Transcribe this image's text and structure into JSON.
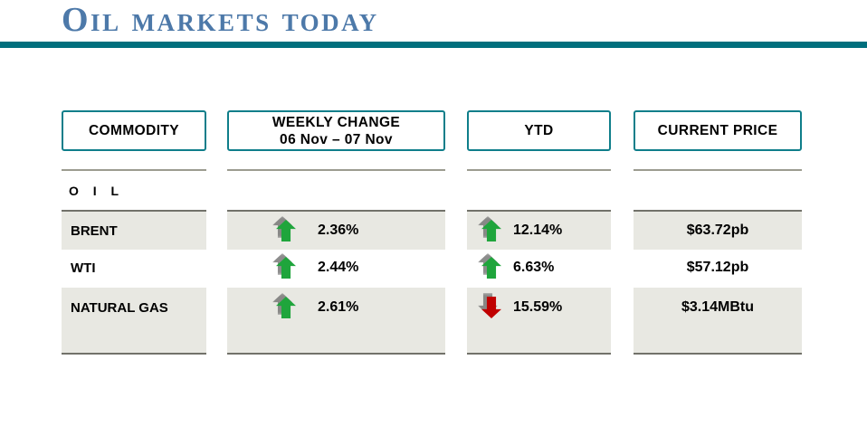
{
  "title": "Oil markets today",
  "colors": {
    "title_blue": "#4d79a9",
    "teal_rule": "#006f7d",
    "box_border": "#0f7e8a",
    "band_gray": "#e8e8e2",
    "band_edge": "#72726a",
    "thin_line": "#9c9c90",
    "arrow_green": "#1fa53c",
    "arrow_red": "#c00000",
    "shadow_gray": "#707070"
  },
  "table": {
    "columns": [
      {
        "id": "commodity",
        "header": "COMMODITY"
      },
      {
        "id": "weekly",
        "header": "WEEKLY CHANGE",
        "subheader": "06 Nov – 07 Nov"
      },
      {
        "id": "ytd",
        "header": "YTD"
      },
      {
        "id": "price",
        "header": "CURRENT PRICE"
      }
    ],
    "section_label": "O I L",
    "rows": [
      {
        "commodity": "BRENT",
        "weekly_change": "2.36%",
        "weekly_direction": "up",
        "ytd": "12.14%",
        "ytd_direction": "up",
        "current_price": "$63.72pb"
      },
      {
        "commodity": "WTI",
        "weekly_change": "2.44%",
        "weekly_direction": "up",
        "ytd": "6.63%",
        "ytd_direction": "up",
        "current_price": "$57.12pb"
      },
      {
        "commodity": "NATURAL GAS",
        "weekly_change": "2.61%",
        "weekly_direction": "up",
        "ytd": "15.59%",
        "ytd_direction": "down",
        "current_price": "$3.14MBtu"
      }
    ]
  }
}
